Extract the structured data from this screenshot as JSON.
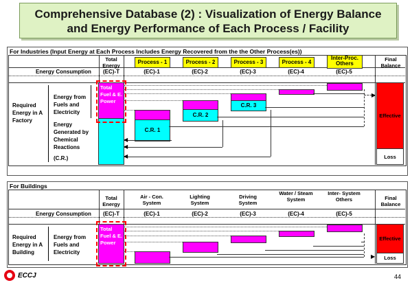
{
  "title": {
    "line1": "Comprehensive Database (2) : Visualization of Energy Balance",
    "line2": "and Energy Performance of Each Process / Facility"
  },
  "industries": {
    "heading": "For Industries (Input Energy at Each Process Includes Energy Recovered from the the Other Process(es))",
    "total_energy": "Total Energy",
    "energy_consumption": "Energy Consumption",
    "ec_total": "(EC)-T",
    "columns": [
      {
        "label": "Process - 1",
        "ec": "(EC)-1"
      },
      {
        "label": "Process - 2",
        "ec": "(EC)-2"
      },
      {
        "label": "Process - 3",
        "ec": "(EC)-3"
      },
      {
        "label": "Process - 4",
        "ec": "(EC)-4"
      },
      {
        "label": "Inter-Proc. Others",
        "ec": "(EC)-5"
      }
    ],
    "final_balance": "Final Balance",
    "required_energy": "Required Energy in A Factory",
    "energy_from_fuels": "Energy from Fuels and Electricity",
    "total_fuel_power": "Total Fuel & E. Power",
    "energy_generated": "Energy Generated by Chemical Reactions",
    "cr_label": "(C.R.)",
    "cr1": "C.R. 1",
    "cr2": "C.R. 2",
    "cr3": "C.R. 3",
    "effective": "Effective",
    "loss": "Loss"
  },
  "buildings": {
    "heading": "For Buildings",
    "total_energy": "Total Energy",
    "energy_consumption": "Energy Consumption",
    "ec_total": "(EC)-T",
    "columns": [
      {
        "label": "Air - Con. System",
        "ec": "(EC)-1"
      },
      {
        "label": "Lighting System",
        "ec": "(EC)-2"
      },
      {
        "label": "Driving System",
        "ec": "(EC)-3"
      },
      {
        "label": "Water / Steam System",
        "ec": "(EC)-4"
      },
      {
        "label": "Inter- System Others",
        "ec": "(EC)-5"
      }
    ],
    "final_balance": "Final Balance",
    "required_energy": "Required Energy in A Building",
    "energy_from_fuels": "Energy from Fuels and Electricity",
    "total_fuel_power": "Total Fuel & E. Power",
    "effective": "Effective",
    "loss": "Loss"
  },
  "footer": {
    "logo_text": "ECCJ",
    "page_number": "44"
  }
}
